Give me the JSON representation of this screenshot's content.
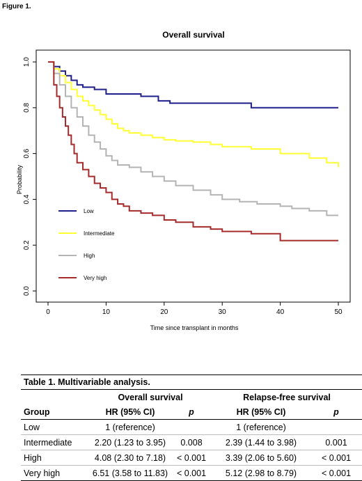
{
  "figure_label": "Figure 1.",
  "chart_data": {
    "type": "line",
    "step": true,
    "title": "Overall survival",
    "xlabel": "Time since transplant in months",
    "ylabel": "Probability",
    "xlim": [
      0,
      50
    ],
    "ylim": [
      0,
      1
    ],
    "xticks": [
      0,
      10,
      20,
      30,
      40,
      50
    ],
    "yticks": [
      "0.0",
      "0.2",
      "0.4",
      "0.6",
      "0.8",
      "1.0"
    ],
    "grid": false,
    "legend_position": "left",
    "series": [
      {
        "name": "Low",
        "color": "#1f1f8c",
        "x": [
          0,
          1,
          2,
          3,
          4,
          5,
          6,
          8,
          10,
          13,
          16,
          19,
          21,
          26,
          35,
          50
        ],
        "y": [
          1.0,
          0.98,
          0.96,
          0.94,
          0.92,
          0.9,
          0.89,
          0.88,
          0.86,
          0.86,
          0.85,
          0.83,
          0.82,
          0.82,
          0.8,
          0.8
        ]
      },
      {
        "name": "Intermediate",
        "color": "#ffff33",
        "x": [
          0,
          1,
          2,
          3,
          4,
          5,
          6,
          7,
          8,
          9,
          10,
          11,
          12,
          13,
          14,
          16,
          18,
          20,
          22,
          25,
          28,
          30,
          35,
          40,
          45,
          48,
          50
        ],
        "y": [
          1.0,
          0.97,
          0.94,
          0.91,
          0.88,
          0.85,
          0.83,
          0.81,
          0.79,
          0.77,
          0.75,
          0.73,
          0.71,
          0.7,
          0.69,
          0.68,
          0.67,
          0.66,
          0.655,
          0.65,
          0.64,
          0.63,
          0.62,
          0.6,
          0.58,
          0.56,
          0.54
        ]
      },
      {
        "name": "High",
        "color": "#b4b4b4",
        "x": [
          0,
          1,
          2,
          3,
          4,
          5,
          6,
          7,
          8,
          9,
          10,
          11,
          12,
          14,
          16,
          18,
          20,
          22,
          25,
          28,
          30,
          33,
          36,
          40,
          42,
          45,
          48,
          50
        ],
        "y": [
          1.0,
          0.95,
          0.9,
          0.85,
          0.8,
          0.76,
          0.72,
          0.68,
          0.65,
          0.62,
          0.59,
          0.57,
          0.55,
          0.54,
          0.52,
          0.5,
          0.48,
          0.46,
          0.44,
          0.42,
          0.4,
          0.39,
          0.38,
          0.37,
          0.36,
          0.35,
          0.33,
          0.33
        ]
      },
      {
        "name": "Very high",
        "color": "#a52a2a",
        "x": [
          0,
          1,
          1.5,
          2,
          2.5,
          3,
          3.5,
          4,
          4.5,
          5,
          6,
          7,
          8,
          9,
          10,
          11,
          12,
          13,
          14,
          16,
          18,
          20,
          22,
          25,
          28,
          30,
          35,
          40,
          45,
          50
        ],
        "y": [
          1.0,
          0.9,
          0.85,
          0.8,
          0.76,
          0.72,
          0.68,
          0.64,
          0.6,
          0.56,
          0.53,
          0.5,
          0.47,
          0.45,
          0.43,
          0.4,
          0.38,
          0.37,
          0.35,
          0.34,
          0.33,
          0.31,
          0.3,
          0.28,
          0.27,
          0.26,
          0.25,
          0.22,
          0.22,
          0.22
        ]
      }
    ]
  },
  "table": {
    "caption": "Table 1.  Multivariable analysis.",
    "group_headers": [
      "Overall survival",
      "Relapse-free survival"
    ],
    "columns": [
      "Group",
      "HR (95% CI)",
      "p",
      "HR (95% CI)",
      "p"
    ],
    "rows": [
      [
        "Low",
        "1 (reference)",
        "",
        "1 (reference)",
        ""
      ],
      [
        "Intermediate",
        "2.20 (1.23 to 3.95)",
        "0.008",
        "2.39 (1.44 to 3.98)",
        "0.001"
      ],
      [
        "High",
        "4.08 (2.30 to 7.18)",
        "< 0.001",
        "3.39 (2.06 to 5.60)",
        "< 0.001"
      ],
      [
        "Very high",
        "6.51 (3.58 to 11.83)",
        "< 0.001",
        "5.12 (2.98 to 8.79)",
        "< 0.001"
      ]
    ]
  }
}
